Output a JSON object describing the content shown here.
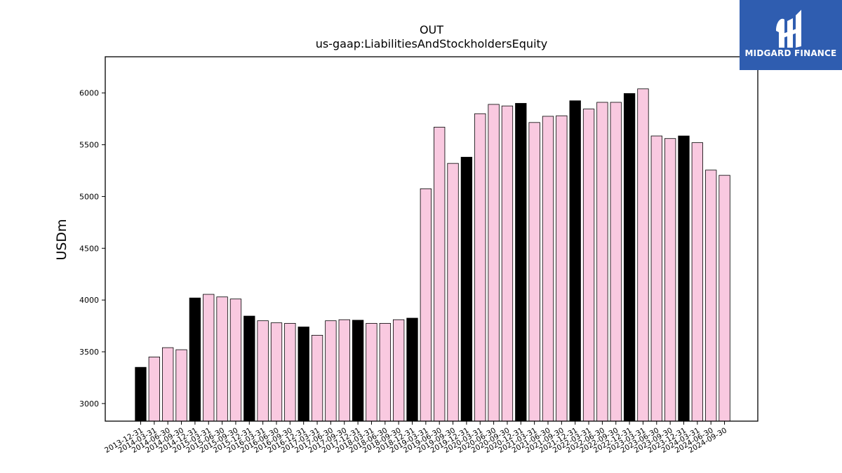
{
  "brand": {
    "name": "MIDGARD FINANCE",
    "bg_color": "#2f5db0"
  },
  "chart_data": {
    "type": "bar",
    "title": "OUT",
    "subtitle": "us-gaap:LiabilitiesAndStockholdersEquity",
    "xlabel": "",
    "ylabel": "USDm",
    "ylim": [
      2830,
      6350
    ],
    "yticks": [
      3000,
      3500,
      4000,
      4500,
      5000,
      5500,
      6000
    ],
    "grid": false,
    "colors": {
      "annual": "#000000",
      "quarterly": "#f9c9e0",
      "edge": "#000000"
    },
    "categories": [
      "2013-12-31",
      "2014-03-31",
      "2014-06-30",
      "2014-09-30",
      "2014-12-31",
      "2015-03-31",
      "2015-06-30",
      "2015-09-30",
      "2015-12-31",
      "2016-03-31",
      "2016-06-30",
      "2016-09-30",
      "2016-12-31",
      "2017-03-31",
      "2017-06-30",
      "2017-09-30",
      "2017-12-31",
      "2018-03-31",
      "2018-06-30",
      "2018-09-30",
      "2018-12-31",
      "2019-03-31",
      "2019-06-30",
      "2019-09-30",
      "2019-12-31",
      "2020-03-31",
      "2020-06-30",
      "2020-09-30",
      "2020-12-31",
      "2021-03-31",
      "2021-06-30",
      "2021-09-30",
      "2021-12-31",
      "2022-03-31",
      "2022-06-30",
      "2022-09-30",
      "2022-12-31",
      "2023-03-31",
      "2023-06-30",
      "2023-09-30",
      "2023-12-31",
      "2024-03-31",
      "2024-06-30",
      "2024-09-30"
    ],
    "values": [
      3350,
      3450,
      3540,
      3520,
      4020,
      4055,
      4030,
      4010,
      3845,
      3800,
      3780,
      3775,
      3740,
      3660,
      3800,
      3810,
      3805,
      3775,
      3775,
      3810,
      3825,
      5075,
      5670,
      5320,
      5380,
      5800,
      5890,
      5875,
      5900,
      5715,
      5775,
      5780,
      5925,
      5845,
      5910,
      5910,
      5995,
      6040,
      5585,
      5560,
      5585,
      5520,
      5255,
      5205
    ],
    "annual_flags": [
      1,
      0,
      0,
      0,
      1,
      0,
      0,
      0,
      1,
      0,
      0,
      0,
      1,
      0,
      0,
      0,
      1,
      0,
      0,
      0,
      1,
      0,
      0,
      0,
      1,
      0,
      0,
      0,
      1,
      0,
      0,
      0,
      1,
      0,
      0,
      0,
      1,
      0,
      0,
      0,
      1,
      0,
      0,
      0
    ]
  }
}
